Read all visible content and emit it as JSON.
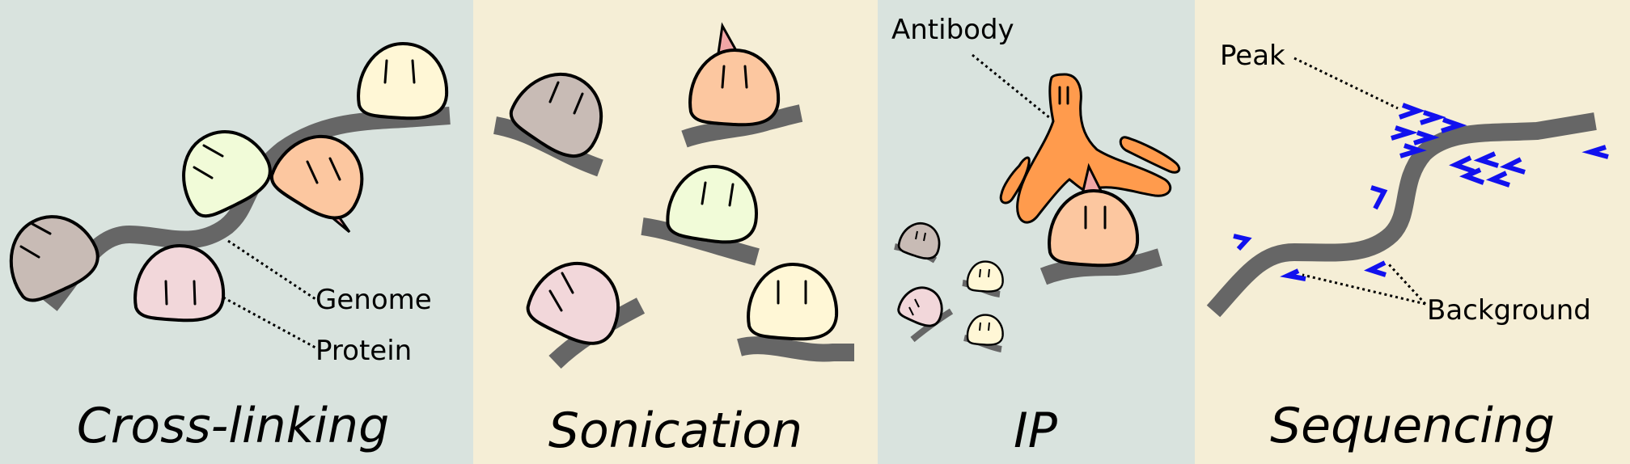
{
  "panels": {
    "crosslinking": {
      "title": "Cross-linking",
      "labels": {
        "genome": "Genome",
        "protein": "Protein"
      }
    },
    "sonication": {
      "title": "Sonication"
    },
    "ip": {
      "title": "IP",
      "labels": {
        "antibody": "Antibody"
      }
    },
    "sequencing": {
      "title": "Sequencing",
      "labels": {
        "peak": "Peak",
        "background": "Background"
      }
    }
  },
  "colors": {
    "panel_bg_gray": "#d9e3de",
    "panel_bg_cream": "#f5eed6",
    "genome": "#666666",
    "protein_gray": "#c8bbb5",
    "protein_green": "#f1fbd8",
    "protein_orange": "#fcc7a0",
    "protein_pink": "#f2d7da",
    "protein_yellow": "#fff7d6",
    "epitope": "#f0a6a6",
    "antibody": "#ff9b4d",
    "reads": "#1111ee"
  },
  "icons": [
    "protein-blob",
    "epitope-tag",
    "antibody-shape",
    "sequencing-read-arrow"
  ]
}
